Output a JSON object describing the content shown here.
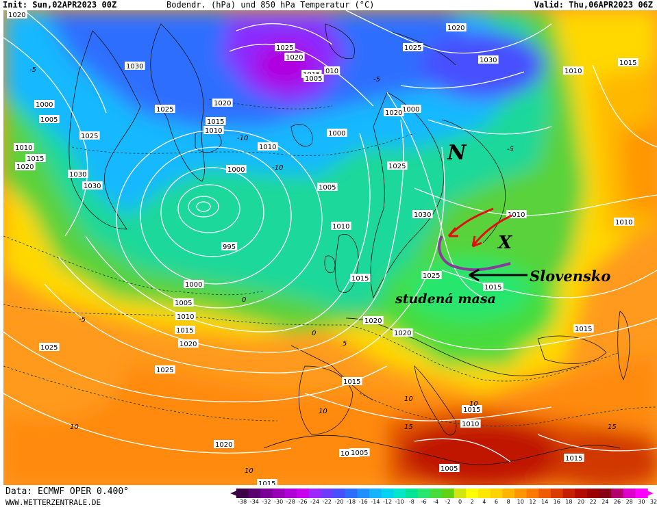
{
  "header": {
    "init": "Init: Sun,02APR2023 00Z",
    "title": "Bodendr. (hPa) und 850 hPa Temperatur (°C)",
    "valid": "Valid: Thu,06APR2023 06Z"
  },
  "footer": {
    "data_source": "Data: ECMWF OPER 0.400°",
    "website": "WWW.WETTERZENTRALE.DE"
  },
  "color_scale": {
    "ticks": [
      "-38",
      "-34",
      "-32",
      "-30",
      "-28",
      "-26",
      "-24",
      "-22",
      "-20",
      "-18",
      "-16",
      "-14",
      "-12",
      "-10",
      "-8",
      "-6",
      "-4",
      "-2",
      "0",
      "2",
      "4",
      "6",
      "8",
      "10",
      "12",
      "14",
      "16",
      "18",
      "20",
      "22",
      "24",
      "26",
      "28",
      "30",
      "32"
    ],
    "colors": [
      "#3d0048",
      "#5a006e",
      "#7a0096",
      "#9800b8",
      "#b000d8",
      "#c800f0",
      "#9c28ff",
      "#6e3cff",
      "#4650ff",
      "#2d6eff",
      "#1e90ff",
      "#14b4ff",
      "#00d2f0",
      "#00e6c8",
      "#00e696",
      "#28e66e",
      "#46dc3c",
      "#64d214",
      "#d2e614",
      "#ffff00",
      "#ffe600",
      "#ffd200",
      "#ffb400",
      "#ff9600",
      "#ff7800",
      "#f05a00",
      "#dc3c00",
      "#c81e00",
      "#b40a00",
      "#9b0000",
      "#870014",
      "#b4006e",
      "#dc00c8",
      "#ff00ff"
    ]
  },
  "isobar_labels": [
    {
      "text": "1020",
      "name": "isobar-label-1020-nw"
    },
    {
      "text": "1030",
      "name": "isobar-label-1030-greenland"
    },
    {
      "text": "1000",
      "name": "isobar-label-1000-west"
    },
    {
      "text": "1005",
      "name": "isobar-label-1005-west"
    },
    {
      "text": "1025",
      "name": "isobar-label-1025-west"
    },
    {
      "text": "1010",
      "name": "isobar-label-1010-west"
    },
    {
      "text": "1015",
      "name": "isobar-label-1015-west"
    },
    {
      "text": "1020",
      "name": "isobar-label-1020-west"
    },
    {
      "text": "1030",
      "name": "isobar-label-1030-west-a"
    },
    {
      "text": "1030",
      "name": "isobar-label-1030-west-b"
    },
    {
      "text": "1025",
      "name": "isobar-label-1025-greenland"
    },
    {
      "text": "1020",
      "name": "isobar-label-1020-greenland"
    },
    {
      "text": "1015",
      "name": "isobar-label-1015-iceland"
    },
    {
      "text": "1010",
      "name": "isobar-label-1010-iceland"
    },
    {
      "text": "1010",
      "name": "isobar-label-1010-svalbard"
    },
    {
      "text": "1000",
      "name": "isobar-label-1000-atlantic"
    },
    {
      "text": "1000",
      "name": "isobar-label-1000-iceland"
    },
    {
      "text": "995",
      "name": "isobar-label-995-low"
    },
    {
      "text": "1000",
      "name": "isobar-label-1000-south"
    },
    {
      "text": "1005",
      "name": "isobar-label-1005-south"
    },
    {
      "text": "1010",
      "name": "isobar-label-1010-south"
    },
    {
      "text": "1015",
      "name": "isobar-label-1015-south"
    },
    {
      "text": "1020",
      "name": "isobar-label-1020-south"
    },
    {
      "text": "1025",
      "name": "isobar-label-1025-arctic-a"
    },
    {
      "text": "1020",
      "name": "isobar-label-1020-arctic"
    },
    {
      "text": "1015",
      "name": "isobar-label-1015-arctic"
    },
    {
      "text": "010",
      "name": "isobar-label-010-arctic"
    },
    {
      "text": "1005",
      "name": "isobar-label-1005-arctic"
    },
    {
      "text": "1020",
      "name": "isobar-label-1020-north"
    },
    {
      "text": "1025",
      "name": "isobar-label-1025-north"
    },
    {
      "text": "1030",
      "name": "isobar-label-1030-north"
    },
    {
      "text": "1010",
      "name": "isobar-label-1010-ne"
    },
    {
      "text": "1015",
      "name": "isobar-label-1015-ne"
    },
    {
      "text": "1000",
      "name": "isobar-label-1000-norway"
    },
    {
      "text": "1005",
      "name": "isobar-label-1005-norway"
    },
    {
      "text": "1010",
      "name": "isobar-label-1010-britain"
    },
    {
      "text": "1015",
      "name": "isobar-label-1015-britain"
    },
    {
      "text": "1020",
      "name": "isobar-label-1020-france"
    },
    {
      "text": "1020",
      "name": "isobar-label-1020-alps"
    },
    {
      "text": "1025",
      "name": "isobar-label-1025-sweden"
    },
    {
      "text": "1030",
      "name": "isobar-label-1030-baltic"
    },
    {
      "text": "1025",
      "name": "isobar-label-1025-poland"
    },
    {
      "text": "1015",
      "name": "isobar-label-1015-hungary"
    },
    {
      "text": "1010",
      "name": "isobar-label-1010-russia"
    },
    {
      "text": "1010",
      "name": "isobar-label-1010-east"
    },
    {
      "text": "1015",
      "name": "isobar-label-1015-blacksea"
    },
    {
      "text": "1025",
      "name": "isobar-label-1025-azores"
    },
    {
      "text": "1025",
      "name": "isobar-label-1025-iberia"
    },
    {
      "text": "1015",
      "name": "isobar-label-1015-med"
    },
    {
      "text": "1020",
      "name": "isobar-label-1020-africa"
    },
    {
      "text": "1015",
      "name": "isobar-label-1015-libya"
    },
    {
      "text": "1010",
      "name": "isobar-label-1010-sahara"
    },
    {
      "text": "1005",
      "name": "isobar-label-1005-sahara-a"
    },
    {
      "text": "1005",
      "name": "isobar-label-1005-egypt"
    },
    {
      "text": "1015",
      "name": "isobar-label-1015-sahara"
    },
    {
      "text": "1010",
      "name": "isobar-label-1010-eastmed"
    },
    {
      "text": "1015",
      "name": "isobar-label-1015-east"
    },
    {
      "text": "1020",
      "name": "isobar-label-1020-scand"
    }
  ],
  "annotations": {
    "country_label": "Slovensko",
    "air_mass_label": "studená masa",
    "low_marker": "N",
    "high_marker": "X"
  }
}
